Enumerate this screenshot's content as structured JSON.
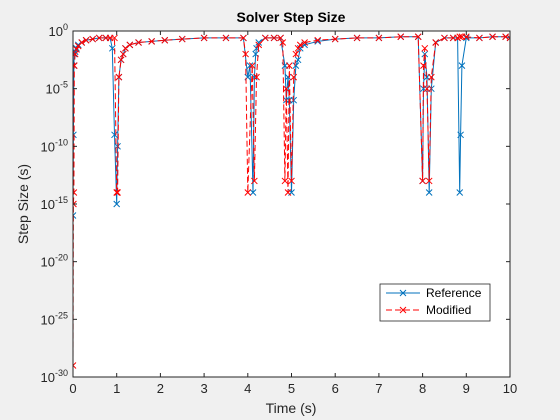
{
  "chart_data": {
    "type": "line",
    "title": "Solver Step Size",
    "xlabel": "Time (s)",
    "ylabel": "Step Size (s)",
    "xlim": [
      0,
      10
    ],
    "ylim_exponents": [
      -30,
      0
    ],
    "y_scale": "log",
    "grid": false,
    "legend_position": "bottom-right",
    "x_ticks": [
      "0",
      "1",
      "2",
      "3",
      "4",
      "5",
      "6",
      "7",
      "8",
      "9",
      "10"
    ],
    "y_tick_base": "10",
    "y_tick_exponents": [
      "0",
      "-5",
      "-10",
      "-15",
      "-20",
      "-25",
      "-30"
    ],
    "series": [
      {
        "name": "Reference",
        "color": "#0072bd",
        "line_style": "solid",
        "marker": "x",
        "x": [
          0,
          0.01,
          0.02,
          0.03,
          0.05,
          0.08,
          0.12,
          0.2,
          0.3,
          0.45,
          0.6,
          0.75,
          0.85,
          0.9,
          0.95,
          1.0,
          1.02,
          1.05,
          1.1,
          1.15,
          1.2,
          1.3,
          1.5,
          1.8,
          2.1,
          2.5,
          3.0,
          3.5,
          3.9,
          4.0,
          4.05,
          4.12,
          4.15,
          4.18,
          4.2,
          4.25,
          4.4,
          4.6,
          4.75,
          4.85,
          4.88,
          4.92,
          4.95,
          5.0,
          5.05,
          5.1,
          5.15,
          5.2,
          5.3,
          5.6,
          6.0,
          6.5,
          7.0,
          7.5,
          7.9,
          8.0,
          8.02,
          8.05,
          8.1,
          8.15,
          8.2,
          8.3,
          8.5,
          8.7,
          8.8,
          8.85,
          8.87,
          8.9,
          9.0,
          9.3,
          9.6,
          9.9,
          10.0
        ],
        "y_exp": [
          -16,
          -9,
          -3,
          -2,
          -1.8,
          -1.5,
          -1.2,
          -1,
          -0.8,
          -0.7,
          -0.6,
          -0.6,
          -0.6,
          -1.5,
          -9,
          -15,
          -10,
          -4,
          -2.5,
          -2,
          -1.5,
          -1.2,
          -1,
          -0.9,
          -0.8,
          -0.7,
          -0.6,
          -0.6,
          -0.6,
          -4,
          -3,
          -14,
          -4,
          -2,
          -1.5,
          -1,
          -0.6,
          -0.6,
          -0.6,
          -3,
          -6,
          -4,
          -6,
          -14,
          -6,
          -3,
          -2.5,
          -1.5,
          -1.2,
          -0.9,
          -0.7,
          -0.6,
          -0.6,
          -0.5,
          -0.5,
          -13,
          -5,
          -2,
          -4,
          -14,
          -5,
          -1,
          -0.6,
          -0.6,
          -0.6,
          -14,
          -9,
          -3,
          -0.6,
          -0.6,
          -0.5,
          -0.5,
          -0.6
        ]
      },
      {
        "name": "Modified",
        "color": "#ff0000",
        "line_style": "dashed",
        "marker": "x",
        "x": [
          0,
          0.01,
          0.02,
          0.03,
          0.05,
          0.08,
          0.12,
          0.2,
          0.3,
          0.45,
          0.6,
          0.75,
          0.85,
          0.95,
          1.0,
          1.02,
          1.05,
          1.1,
          1.15,
          1.2,
          1.3,
          1.5,
          1.8,
          2.1,
          2.5,
          3.0,
          3.5,
          3.9,
          3.95,
          4.0,
          4.1,
          4.15,
          4.2,
          4.25,
          4.4,
          4.6,
          4.75,
          4.8,
          4.85,
          4.88,
          4.92,
          4.95,
          5.0,
          5.05,
          5.1,
          5.15,
          5.2,
          5.3,
          5.6,
          6.0,
          6.5,
          7.0,
          7.5,
          7.9,
          8.0,
          8.02,
          8.05,
          8.1,
          8.15,
          8.2,
          8.3,
          8.5,
          8.7,
          8.8,
          8.85,
          8.9,
          9.0,
          9.3,
          9.6,
          9.9,
          10.0
        ],
        "y_exp": [
          -29,
          -15,
          -14,
          -3,
          -2,
          -1.6,
          -1.3,
          -1,
          -0.8,
          -0.7,
          -0.6,
          -0.6,
          -0.6,
          -0.6,
          -14,
          -14,
          -4,
          -2.5,
          -2,
          -1.5,
          -1.2,
          -1,
          -0.9,
          -0.8,
          -0.7,
          -0.6,
          -0.6,
          -0.6,
          -2,
          -14,
          -3,
          -13,
          -4,
          -1.2,
          -0.6,
          -0.6,
          -0.6,
          -1,
          -13,
          -5,
          -14,
          -3,
          -13,
          -4,
          -2,
          -1.5,
          -1.2,
          -1,
          -0.8,
          -0.7,
          -0.6,
          -0.6,
          -0.5,
          -0.5,
          -13,
          -3,
          -1.5,
          -5,
          -13,
          -4,
          -1,
          -0.6,
          -0.6,
          -0.6,
          -0.5,
          -0.5,
          -0.5,
          -0.6,
          -0.5,
          -0.5,
          -0.6
        ]
      }
    ]
  }
}
